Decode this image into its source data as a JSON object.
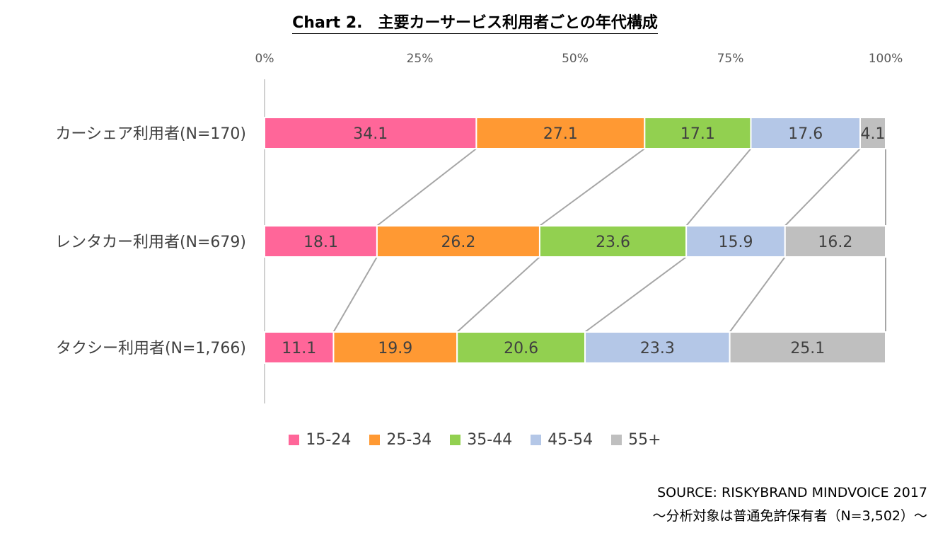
{
  "chart_data": {
    "type": "bar",
    "stacked": "percent",
    "orientation": "horizontal",
    "title": "Chart 2.　主要カーサービス利用者ごとの年代構成",
    "x_ticks": [
      "0%",
      "25%",
      "50%",
      "75%",
      "100%"
    ],
    "xlim": [
      0,
      100
    ],
    "categories": [
      "カーシェア利用者(N=170)",
      "レンタカー利用者(N=679)",
      "タクシー利用者(N=1,766)"
    ],
    "series": [
      {
        "name": "15-24",
        "color": "#ff6699",
        "values": [
          34.1,
          18.1,
          11.1
        ]
      },
      {
        "name": "25-34",
        "color": "#ff9933",
        "values": [
          27.1,
          26.2,
          19.9
        ]
      },
      {
        "name": "35-44",
        "color": "#92d050",
        "values": [
          17.1,
          23.6,
          20.6
        ]
      },
      {
        "name": "45-54",
        "color": "#b4c7e7",
        "values": [
          17.6,
          15.9,
          23.3
        ]
      },
      {
        "name": "55+",
        "color": "#bfbfbf",
        "values": [
          4.1,
          16.2,
          25.1
        ]
      }
    ],
    "series_lines": true,
    "legend_position": "bottom",
    "grid": false
  },
  "source": {
    "line1": "SOURCE: RISKYBRAND MINDVOICE 2017",
    "line2": "～分析対象は普通免許保有者（N=3,502）～"
  }
}
